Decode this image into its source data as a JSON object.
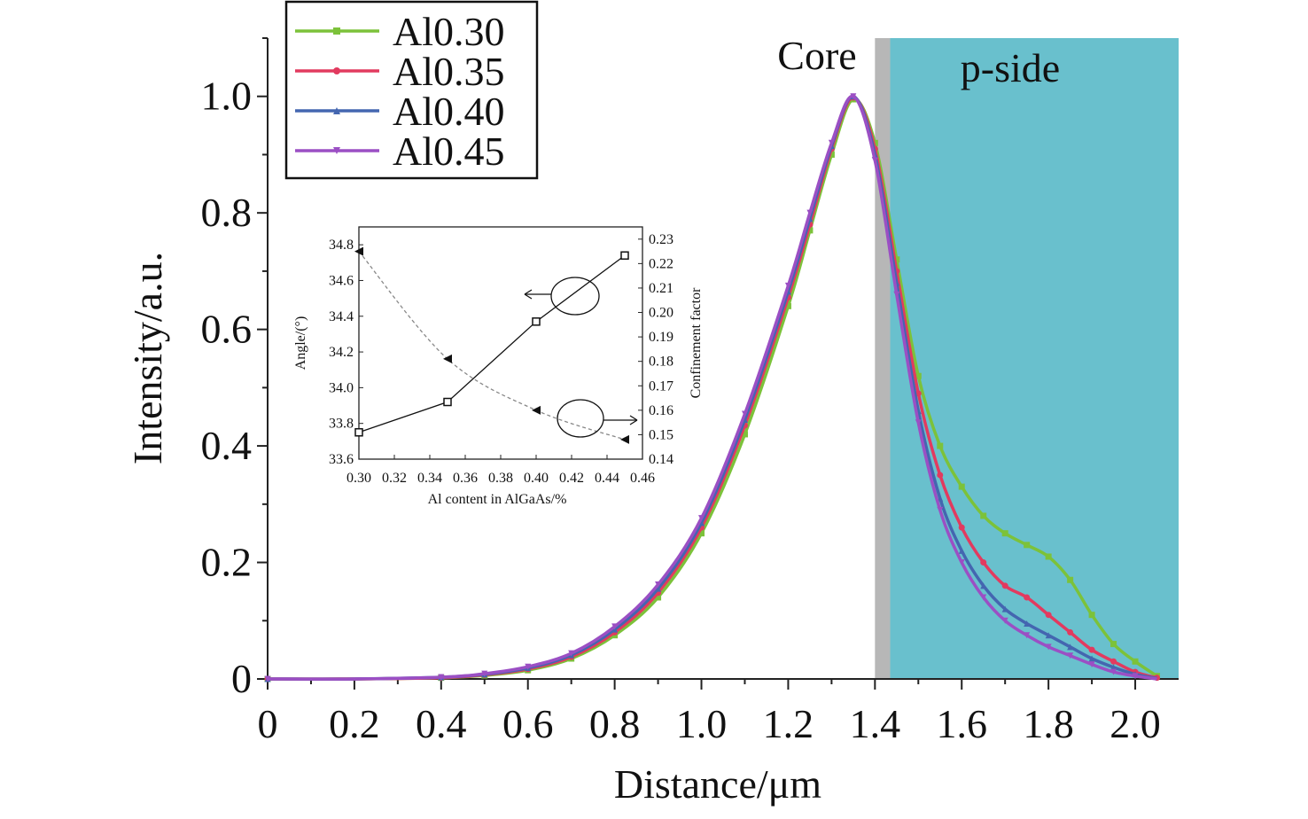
{
  "chart_data": [
    {
      "type": "line",
      "xlabel": "Distance/μm",
      "ylabel": "Intensity/a.u.",
      "xlim": [
        0,
        2.1
      ],
      "ylim": [
        0,
        1.1
      ],
      "x_ticks": [
        "0",
        "0.2",
        "0.4",
        "0.6",
        "0.8",
        "1.0",
        "1.2",
        "1.4",
        "1.6",
        "1.8",
        "2.0"
      ],
      "y_ticks": [
        "0",
        "0.2",
        "0.4",
        "0.6",
        "0.8",
        "1.0"
      ],
      "regions": [
        {
          "label": "Core",
          "x_end": 1.4
        },
        {
          "label": "",
          "x": [
            1.4,
            1.435
          ],
          "color": "#b7b7b7"
        },
        {
          "label": "p-side",
          "x": [
            1.435,
            2.1
          ],
          "color": "#69c0cd"
        }
      ],
      "legend": {
        "placement": "top-left"
      },
      "x": [
        0,
        0.2,
        0.4,
        0.5,
        0.6,
        0.7,
        0.8,
        0.9,
        1.0,
        1.1,
        1.2,
        1.25,
        1.3,
        1.35,
        1.4,
        1.45,
        1.5,
        1.55,
        1.6,
        1.65,
        1.7,
        1.75,
        1.8,
        1.85,
        1.9,
        1.95,
        2.0,
        2.05
      ],
      "series": [
        {
          "name": "Al0.30",
          "color": "#7cc23a",
          "marker": "square",
          "values": [
            0,
            0,
            0.002,
            0.006,
            0.015,
            0.035,
            0.075,
            0.14,
            0.25,
            0.42,
            0.64,
            0.77,
            0.9,
            0.995,
            0.92,
            0.72,
            0.52,
            0.4,
            0.33,
            0.28,
            0.25,
            0.23,
            0.21,
            0.17,
            0.11,
            0.06,
            0.03,
            0.005
          ]
        },
        {
          "name": "Al0.35",
          "color": "#e23a5f",
          "marker": "circle",
          "values": [
            0,
            0,
            0.002,
            0.007,
            0.017,
            0.038,
            0.08,
            0.148,
            0.26,
            0.435,
            0.655,
            0.78,
            0.91,
            0.998,
            0.91,
            0.7,
            0.49,
            0.35,
            0.26,
            0.2,
            0.16,
            0.14,
            0.11,
            0.08,
            0.05,
            0.03,
            0.012,
            0.002
          ]
        },
        {
          "name": "Al0.40",
          "color": "#4466b0",
          "marker": "triangle-up",
          "values": [
            0,
            0,
            0.003,
            0.008,
            0.019,
            0.041,
            0.085,
            0.155,
            0.268,
            0.445,
            0.665,
            0.79,
            0.915,
            1.0,
            0.9,
            0.68,
            0.46,
            0.31,
            0.22,
            0.16,
            0.12,
            0.095,
            0.075,
            0.055,
            0.035,
            0.02,
            0.008,
            0.001
          ]
        },
        {
          "name": "Al0.45",
          "color": "#9b4fc4",
          "marker": "triangle-down",
          "values": [
            0,
            0,
            0.003,
            0.009,
            0.021,
            0.044,
            0.09,
            0.162,
            0.276,
            0.455,
            0.675,
            0.8,
            0.92,
            1.0,
            0.89,
            0.66,
            0.44,
            0.29,
            0.2,
            0.14,
            0.1,
            0.075,
            0.055,
            0.04,
            0.025,
            0.012,
            0.005,
            0
          ]
        }
      ]
    },
    {
      "type": "line",
      "xlabel": "Al content in AlGaAs/%",
      "ylabel": "Angle/(°)",
      "y2label": "Confinement factor",
      "xlim": [
        0.3,
        0.46
      ],
      "ylim": [
        33.6,
        34.9
      ],
      "y2lim": [
        0.14,
        0.235
      ],
      "x_ticks": [
        "0.30",
        "0.32",
        "0.34",
        "0.36",
        "0.38",
        "0.40",
        "0.42",
        "0.44",
        "0.46"
      ],
      "y_ticks": [
        "33.6",
        "33.8",
        "34.0",
        "34.2",
        "34.4",
        "34.6",
        "34.8"
      ],
      "y2_ticks": [
        "0.14",
        "0.15",
        "0.16",
        "0.17",
        "0.18",
        "0.19",
        "0.20",
        "0.21",
        "0.22",
        "0.23"
      ],
      "x": [
        0.3,
        0.35,
        0.4,
        0.45
      ],
      "series": [
        {
          "axis": "left",
          "marker": "square-open",
          "color": "#111111",
          "style": "solid",
          "values": [
            33.75,
            33.92,
            34.37,
            34.74
          ]
        },
        {
          "axis": "right",
          "marker": "triangle-left",
          "color": "#888888",
          "style": "dashed",
          "values": [
            0.225,
            0.181,
            0.16,
            0.148
          ]
        }
      ]
    }
  ]
}
